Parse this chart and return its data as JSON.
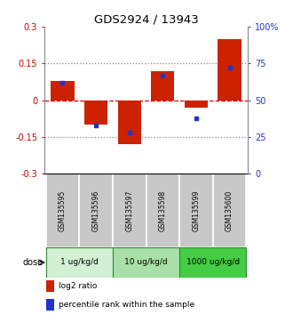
{
  "title": "GDS2924 / 13943",
  "samples": [
    "GSM135595",
    "GSM135596",
    "GSM135597",
    "GSM135598",
    "GSM135599",
    "GSM135600"
  ],
  "log2_ratio": [
    0.08,
    -0.1,
    -0.18,
    0.12,
    -0.03,
    0.25
  ],
  "percentile_rank": [
    62,
    33,
    28,
    67,
    38,
    72
  ],
  "ylim_left": [
    -0.3,
    0.3
  ],
  "ylim_right": [
    0,
    100
  ],
  "yticks_left": [
    -0.3,
    -0.15,
    0,
    0.15,
    0.3
  ],
  "ytick_labels_left": [
    "-0.3",
    "-0.15",
    "0",
    "0.15",
    "0.3"
  ],
  "yticks_right": [
    0,
    25,
    50,
    75,
    100
  ],
  "ytick_labels_right": [
    "0",
    "25",
    "50",
    "75",
    "100%"
  ],
  "hline_dotted": [
    0.15,
    -0.15
  ],
  "hline_dashed": 0,
  "bar_color": "#cc2200",
  "dot_color": "#2233cc",
  "bar_width": 0.7,
  "doses": [
    {
      "label": "1 ug/kg/d",
      "samples": [
        0,
        1
      ],
      "color": "#d4f0d4"
    },
    {
      "label": "10 ug/kg/d",
      "samples": [
        2,
        3
      ],
      "color": "#a8e0a8"
    },
    {
      "label": "1000 ug/kg/d",
      "samples": [
        4,
        5
      ],
      "color": "#44cc44"
    }
  ],
  "legend_items": [
    {
      "label": "log2 ratio",
      "color": "#cc2200"
    },
    {
      "label": "percentile rank within the sample",
      "color": "#2233cc"
    }
  ],
  "dose_label": "dose",
  "background_color": "#ffffff",
  "sample_box_color": "#c8c8c8",
  "sample_box_edge": "#888888"
}
